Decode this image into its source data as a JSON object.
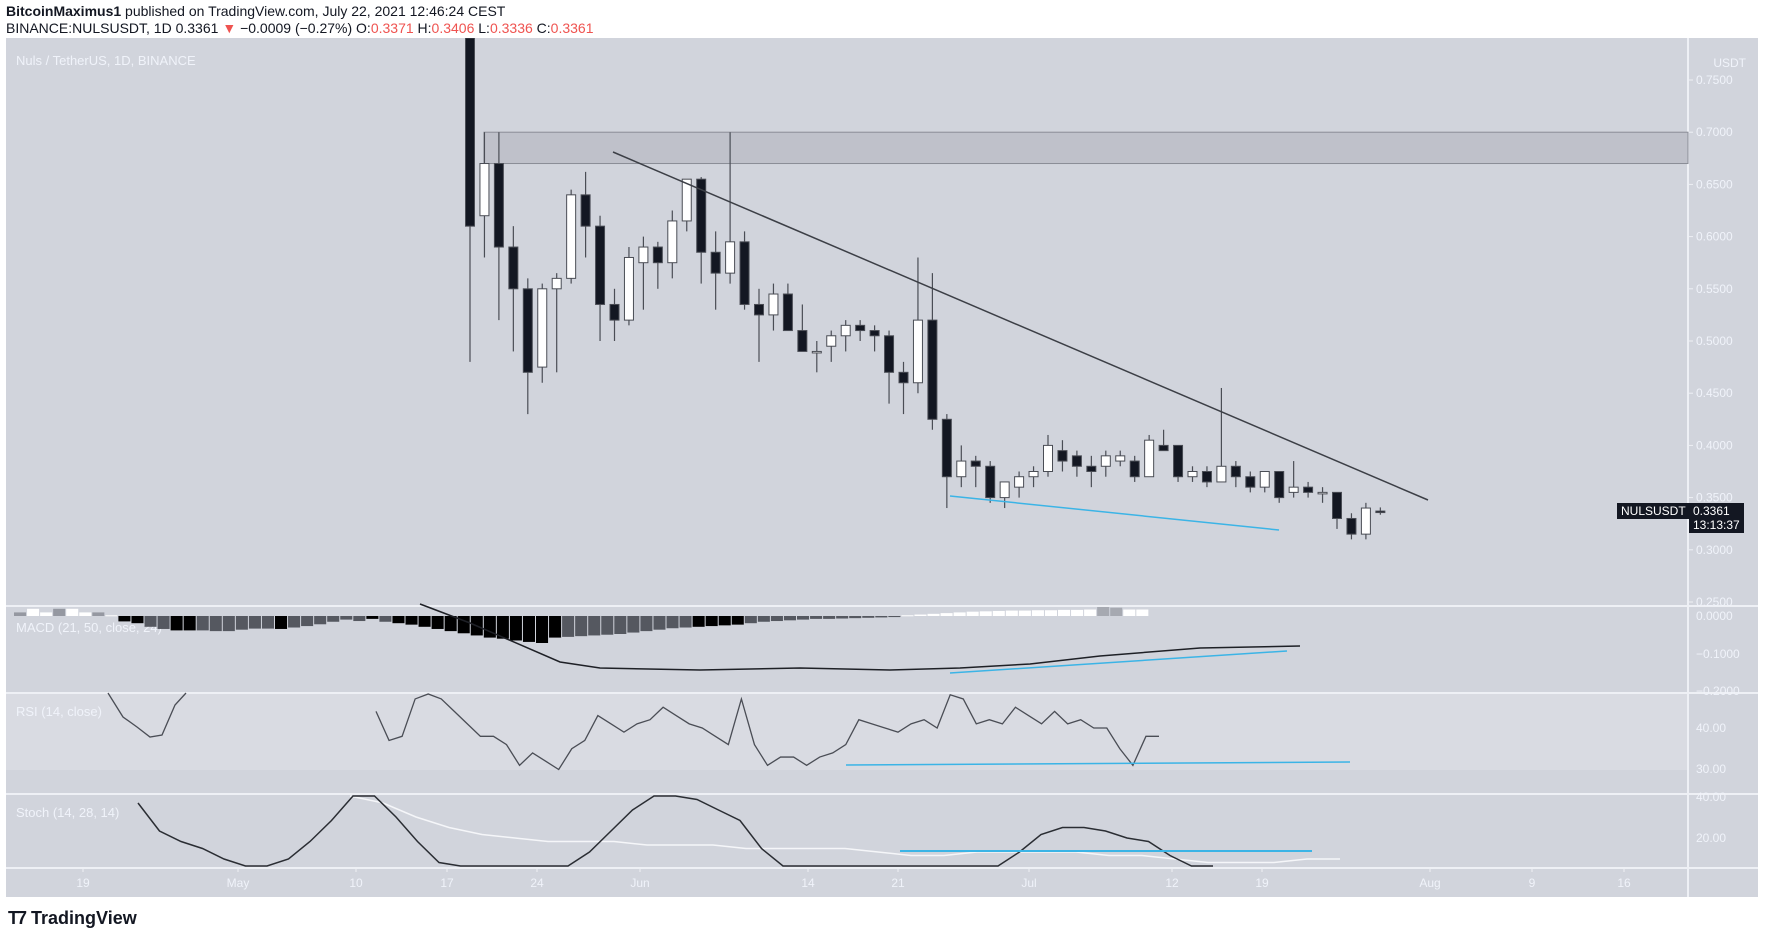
{
  "header": {
    "publisher": "BitcoinMaximus1",
    "published_text": "published on TradingView.com, July 22, 2021 12:46:24 CEST",
    "symbol_line": "BINANCE:NULSUSDT, 1D",
    "last": "0.3361",
    "change": "−0.0009 (−0.27%)",
    "change_direction_icon": "triangle-down-icon",
    "o_label": "O:",
    "o": "0.3371",
    "h_label": "H:",
    "h": "0.3406",
    "l_label": "L:",
    "l": "0.3336",
    "c_label": "C:",
    "c": "0.3361"
  },
  "chart": {
    "title": "Nuls / TetherUS, 1D, BINANCE",
    "currency": "USDT",
    "symbol_tag": "NULSUSDT",
    "price_tag": "0.3361",
    "countdown": "13:13:37",
    "colors": {
      "background": "#d1d4dc",
      "up_candle": "#ffffff",
      "down_candle": "#131722",
      "trendline": "#3c3f46",
      "support_line": "#3bb4e6",
      "resistance_zone": "#bfc1ca"
    }
  },
  "footer": {
    "brand": "TradingView",
    "logo_icon": "tradingview-logo-icon"
  },
  "chart_data": [
    {
      "type": "candlestick",
      "title": "Nuls / TetherUS, 1D, BINANCE",
      "ylabel": "USDT",
      "ylim": [
        0.25,
        0.78
      ],
      "yticks": [
        "0.7500",
        "0.7000",
        "0.6500",
        "0.6000",
        "0.5500",
        "0.5000",
        "0.4500",
        "0.4000",
        "0.3500",
        "0.3000",
        "0.2500"
      ],
      "xticks": [
        "19",
        "May",
        "10",
        "17",
        "24",
        "Jun",
        "14",
        "21",
        "Jul",
        "12",
        "19",
        "Aug",
        "9",
        "16"
      ],
      "candles": [
        {
          "o": 1.02,
          "h": 1.1,
          "l": 0.48,
          "c": 0.61
        },
        {
          "o": 0.62,
          "h": 0.7,
          "l": 0.58,
          "c": 0.67
        },
        {
          "o": 0.67,
          "h": 0.7,
          "l": 0.52,
          "c": 0.59
        },
        {
          "o": 0.59,
          "h": 0.61,
          "l": 0.49,
          "c": 0.55
        },
        {
          "o": 0.55,
          "h": 0.56,
          "l": 0.43,
          "c": 0.47
        },
        {
          "o": 0.475,
          "h": 0.555,
          "l": 0.46,
          "c": 0.55
        },
        {
          "o": 0.55,
          "h": 0.565,
          "l": 0.47,
          "c": 0.56
        },
        {
          "o": 0.56,
          "h": 0.645,
          "l": 0.555,
          "c": 0.64
        },
        {
          "o": 0.64,
          "h": 0.662,
          "l": 0.58,
          "c": 0.61
        },
        {
          "o": 0.61,
          "h": 0.62,
          "l": 0.5,
          "c": 0.535
        },
        {
          "o": 0.535,
          "h": 0.55,
          "l": 0.5,
          "c": 0.52
        },
        {
          "o": 0.52,
          "h": 0.59,
          "l": 0.515,
          "c": 0.58
        },
        {
          "o": 0.575,
          "h": 0.6,
          "l": 0.53,
          "c": 0.59
        },
        {
          "o": 0.59,
          "h": 0.595,
          "l": 0.55,
          "c": 0.575
        },
        {
          "o": 0.575,
          "h": 0.625,
          "l": 0.56,
          "c": 0.615
        },
        {
          "o": 0.615,
          "h": 0.655,
          "l": 0.605,
          "c": 0.655
        },
        {
          "o": 0.655,
          "h": 0.657,
          "l": 0.555,
          "c": 0.585
        },
        {
          "o": 0.585,
          "h": 0.605,
          "l": 0.53,
          "c": 0.565
        },
        {
          "o": 0.565,
          "h": 0.7,
          "l": 0.555,
          "c": 0.595
        },
        {
          "o": 0.595,
          "h": 0.605,
          "l": 0.53,
          "c": 0.535
        },
        {
          "o": 0.535,
          "h": 0.55,
          "l": 0.48,
          "c": 0.525
        },
        {
          "o": 0.525,
          "h": 0.555,
          "l": 0.51,
          "c": 0.545
        },
        {
          "o": 0.545,
          "h": 0.555,
          "l": 0.51,
          "c": 0.51
        },
        {
          "o": 0.51,
          "h": 0.535,
          "l": 0.49,
          "c": 0.49
        },
        {
          "o": 0.49,
          "h": 0.5,
          "l": 0.47,
          "c": 0.49
        },
        {
          "o": 0.495,
          "h": 0.51,
          "l": 0.48,
          "c": 0.505
        },
        {
          "o": 0.505,
          "h": 0.52,
          "l": 0.49,
          "c": 0.515
        },
        {
          "o": 0.515,
          "h": 0.52,
          "l": 0.5,
          "c": 0.51
        },
        {
          "o": 0.51,
          "h": 0.515,
          "l": 0.49,
          "c": 0.505
        },
        {
          "o": 0.505,
          "h": 0.51,
          "l": 0.44,
          "c": 0.47
        },
        {
          "o": 0.47,
          "h": 0.48,
          "l": 0.43,
          "c": 0.46
        },
        {
          "o": 0.46,
          "h": 0.58,
          "l": 0.45,
          "c": 0.52
        },
        {
          "o": 0.52,
          "h": 0.565,
          "l": 0.415,
          "c": 0.425
        },
        {
          "o": 0.425,
          "h": 0.43,
          "l": 0.34,
          "c": 0.37
        },
        {
          "o": 0.37,
          "h": 0.4,
          "l": 0.36,
          "c": 0.385
        },
        {
          "o": 0.385,
          "h": 0.39,
          "l": 0.36,
          "c": 0.38
        },
        {
          "o": 0.38,
          "h": 0.385,
          "l": 0.345,
          "c": 0.35
        },
        {
          "o": 0.35,
          "h": 0.365,
          "l": 0.34,
          "c": 0.365
        },
        {
          "o": 0.36,
          "h": 0.375,
          "l": 0.35,
          "c": 0.37
        },
        {
          "o": 0.37,
          "h": 0.38,
          "l": 0.36,
          "c": 0.375
        },
        {
          "o": 0.375,
          "h": 0.41,
          "l": 0.37,
          "c": 0.4
        },
        {
          "o": 0.395,
          "h": 0.405,
          "l": 0.375,
          "c": 0.385
        },
        {
          "o": 0.39,
          "h": 0.395,
          "l": 0.37,
          "c": 0.38
        },
        {
          "o": 0.38,
          "h": 0.39,
          "l": 0.36,
          "c": 0.375
        },
        {
          "o": 0.38,
          "h": 0.395,
          "l": 0.37,
          "c": 0.39
        },
        {
          "o": 0.385,
          "h": 0.395,
          "l": 0.38,
          "c": 0.39
        },
        {
          "o": 0.385,
          "h": 0.39,
          "l": 0.365,
          "c": 0.37
        },
        {
          "o": 0.37,
          "h": 0.41,
          "l": 0.37,
          "c": 0.405
        },
        {
          "o": 0.4,
          "h": 0.415,
          "l": 0.395,
          "c": 0.395
        },
        {
          "o": 0.4,
          "h": 0.4,
          "l": 0.365,
          "c": 0.37
        },
        {
          "o": 0.37,
          "h": 0.38,
          "l": 0.365,
          "c": 0.375
        },
        {
          "o": 0.375,
          "h": 0.38,
          "l": 0.36,
          "c": 0.365
        },
        {
          "o": 0.365,
          "h": 0.455,
          "l": 0.365,
          "c": 0.38
        },
        {
          "o": 0.38,
          "h": 0.385,
          "l": 0.36,
          "c": 0.37
        },
        {
          "o": 0.37,
          "h": 0.375,
          "l": 0.355,
          "c": 0.36
        },
        {
          "o": 0.36,
          "h": 0.375,
          "l": 0.355,
          "c": 0.375
        },
        {
          "o": 0.375,
          "h": 0.375,
          "l": 0.345,
          "c": 0.35
        },
        {
          "o": 0.355,
          "h": 0.385,
          "l": 0.35,
          "c": 0.36
        },
        {
          "o": 0.36,
          "h": 0.365,
          "l": 0.35,
          "c": 0.355
        },
        {
          "o": 0.355,
          "h": 0.36,
          "l": 0.345,
          "c": 0.355
        },
        {
          "o": 0.355,
          "h": 0.355,
          "l": 0.32,
          "c": 0.33
        },
        {
          "o": 0.33,
          "h": 0.335,
          "l": 0.31,
          "c": 0.315
        },
        {
          "o": 0.315,
          "h": 0.345,
          "l": 0.31,
          "c": 0.34
        },
        {
          "o": 0.3371,
          "h": 0.3406,
          "l": 0.3336,
          "c": 0.3361
        }
      ],
      "annotations": [
        {
          "type": "zone",
          "label": "resistance",
          "from": 0.67,
          "to": 0.7
        },
        {
          "type": "trendline",
          "label": "descending resistance",
          "from": {
            "x": "~May 29",
            "y": 0.68
          },
          "to": {
            "x": "~Aug 1",
            "y": 0.35
          }
        },
        {
          "type": "trendline",
          "label": "support (blue)",
          "from": {
            "x": "~Jun 25",
            "y": 0.352
          },
          "to": {
            "x": "~Jul 20",
            "y": 0.318
          }
        }
      ]
    },
    {
      "type": "bar",
      "title": "MACD (21, 50, close, 24)",
      "yticks": [
        "0.0000",
        "−0.1000",
        "−0.2000"
      ],
      "histogram_trend": "falling to ~ -0.13 late May, recovering to slightly positive by mid-July",
      "macd_line_values": [
        -0.12,
        -0.14,
        -0.15,
        -0.15,
        -0.145,
        -0.14,
        -0.14,
        -0.13,
        -0.145,
        -0.145,
        -0.13,
        -0.12,
        -0.11,
        -0.1,
        -0.095,
        -0.09
      ],
      "annotation": "blue rising line under MACD line (bullish divergence)"
    },
    {
      "type": "line",
      "title": "RSI (14, close)",
      "yticks": [
        "40.00",
        "30.00"
      ],
      "band": [
        30,
        70
      ],
      "values_visible": [
        44,
        37,
        38,
        47,
        49,
        47,
        44,
        41,
        38,
        38,
        36,
        31,
        34,
        32,
        30,
        35,
        37,
        43,
        41,
        39,
        41,
        42,
        45,
        43,
        41,
        40,
        38,
        36,
        47,
        36,
        31,
        33,
        33,
        31,
        33,
        34,
        36,
        42,
        41,
        40,
        39,
        41,
        42,
        40,
        48,
        47,
        41,
        42,
        41,
        45,
        43,
        41,
        44,
        41,
        42,
        40,
        40,
        35,
        31,
        38,
        38
      ],
      "annotation": "horizontal blue support line at ~31"
    },
    {
      "type": "line",
      "title": "Stoch (14, 28, 14)",
      "yticks": [
        "40.00",
        "20.00"
      ],
      "series": [
        {
          "name": "%K",
          "values_visible": [
            38,
            30,
            27,
            25,
            22,
            19,
            19,
            22,
            27,
            33,
            40,
            40,
            34,
            27,
            21,
            17,
            15,
            14,
            15,
            17,
            20,
            24,
            30,
            36,
            40,
            40,
            39,
            36,
            33,
            25,
            18,
            16,
            15,
            15,
            15,
            15,
            16,
            16,
            17,
            18,
            19,
            24,
            29,
            31,
            31,
            30,
            28,
            27,
            23,
            18,
            16
          ]
        },
        {
          "name": "%D",
          "values_visible": [
            40,
            38,
            34,
            31,
            29,
            28,
            27,
            27,
            27,
            26,
            26,
            26,
            25,
            25,
            25,
            25,
            24,
            23,
            23,
            24,
            24,
            24,
            24,
            23,
            23,
            22,
            21,
            21,
            21,
            22,
            22
          ]
        }
      ],
      "annotation": "horizontal blue line at ~16"
    }
  ]
}
